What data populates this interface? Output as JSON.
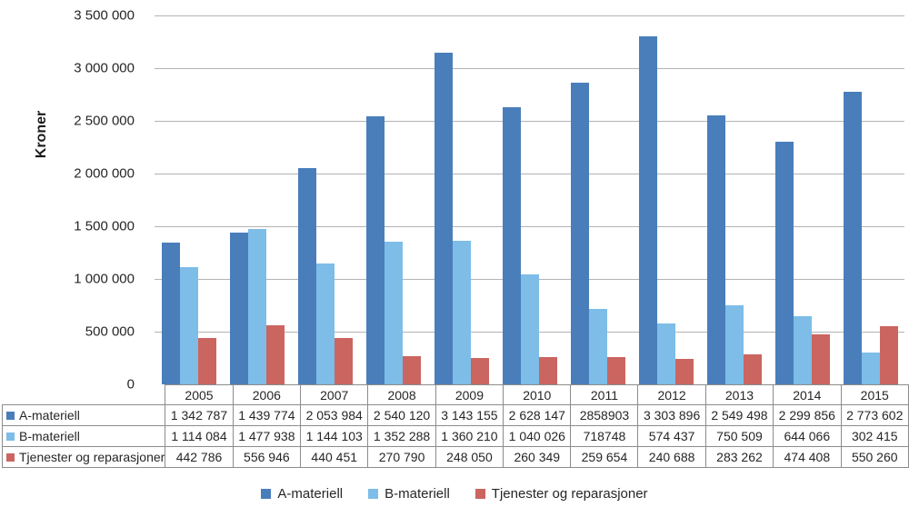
{
  "chart": {
    "y_axis_title": "Kroner",
    "ytick_labels": [
      "3 500 000",
      "3 000 000",
      "2 500 000",
      "2 000 000",
      "1 500 000",
      "1 000 000",
      "500 000",
      "0"
    ],
    "gridline_color": "#b3b3b3",
    "table_border_color": "#8c8c8c"
  },
  "chart_data": {
    "type": "bar",
    "title": "",
    "xlabel": "",
    "ylabel": "Kroner",
    "ylim": [
      0,
      3500000
    ],
    "grid": true,
    "legend_position": "bottom",
    "categories": [
      "2005",
      "2006",
      "2007",
      "2008",
      "2009",
      "2010",
      "2011",
      "2012",
      "2013",
      "2014",
      "2015"
    ],
    "series": [
      {
        "name": "A-materiell",
        "color": "#4A7EBB",
        "values": [
          1342787,
          1439774,
          2053984,
          2540120,
          3143155,
          2628147,
          2858903,
          3303896,
          2549498,
          2299856,
          2773602
        ]
      },
      {
        "name": "B-materiell",
        "color": "#7DBDE8",
        "values": [
          1114084,
          1477938,
          1144103,
          1352288,
          1360210,
          1040026,
          718748,
          574437,
          750509,
          644066,
          302415
        ]
      },
      {
        "name": "Tjenester og reparasjoner",
        "color": "#CB6560",
        "values": [
          442786,
          556946,
          440451,
          270790,
          248050,
          260349,
          259654,
          240688,
          283262,
          474408,
          550260
        ]
      }
    ]
  },
  "table": {
    "years": [
      "2005",
      "2006",
      "2007",
      "2008",
      "2009",
      "2010",
      "2011",
      "2012",
      "2013",
      "2014",
      "2015"
    ],
    "rows": [
      {
        "label": "A-materiell",
        "marker_color": "#4A7EBB",
        "cells": [
          "1 342 787",
          "1 439 774",
          "2 053 984",
          "2 540 120",
          "3 143 155",
          "2 628 147",
          "2858903",
          "3 303 896",
          "2 549 498",
          "2 299 856",
          "2 773 602"
        ]
      },
      {
        "label": "B-materiell",
        "marker_color": "#7DBDE8",
        "cells": [
          "1 114 084",
          "1 477 938",
          "1 144 103",
          "1 352 288",
          "1 360 210",
          "1 040 026",
          "718748",
          "574 437",
          "750 509",
          "644 066",
          "302 415"
        ]
      },
      {
        "label": "Tjenester og reparasjoner",
        "marker_color": "#CB6560",
        "cells": [
          "442 786",
          "556 946",
          "440 451",
          "270 790",
          "248 050",
          "260 349",
          "259 654",
          "240 688",
          "283 262",
          "474 408",
          "550 260"
        ]
      }
    ]
  },
  "legend": {
    "items": [
      {
        "label": "A-materiell",
        "color": "#4A7EBB"
      },
      {
        "label": "B-materiell",
        "color": "#7DBDE8"
      },
      {
        "label": "Tjenester og reparasjoner",
        "color": "#CB6560"
      }
    ]
  }
}
